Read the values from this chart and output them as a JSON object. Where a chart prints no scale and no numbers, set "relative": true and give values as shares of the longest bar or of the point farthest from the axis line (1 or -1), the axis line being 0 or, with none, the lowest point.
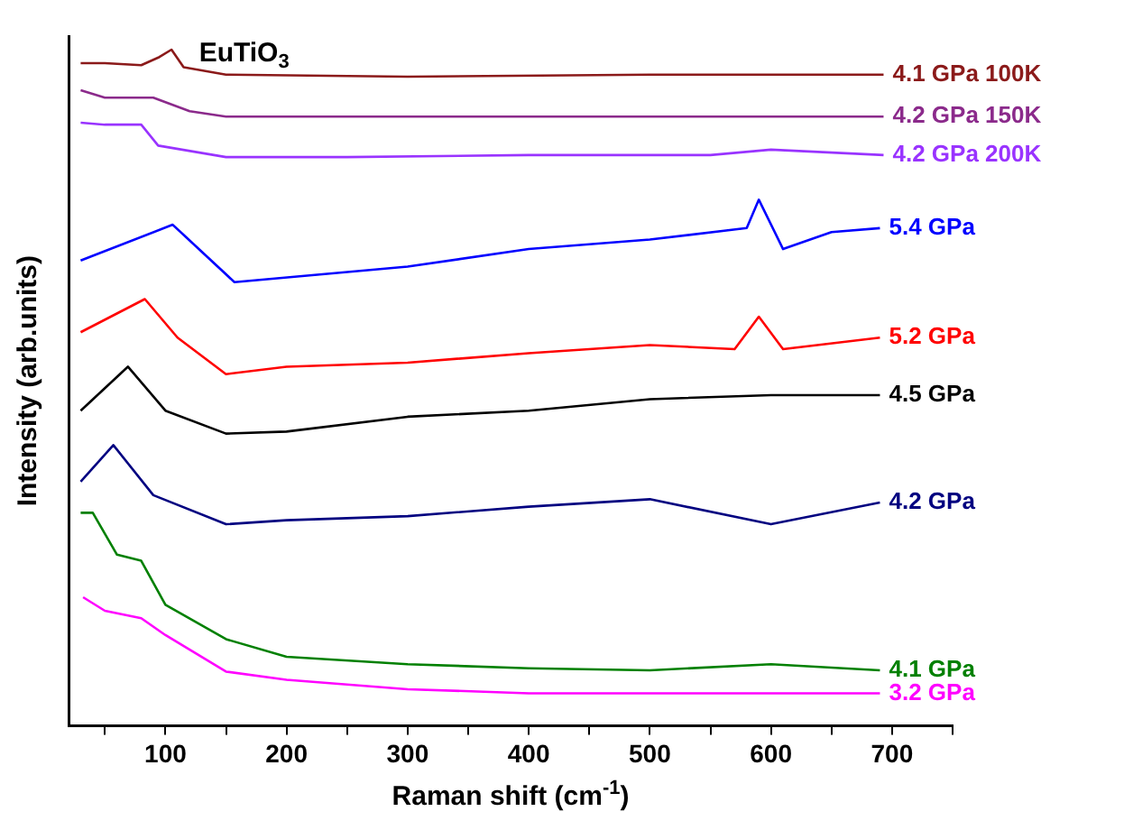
{
  "chart_data": {
    "type": "line",
    "title": "EuTiO$_{3}$",
    "xlabel": "Raman shift (cm$^{-1}$)",
    "ylabel": "Intensity (arb.units)",
    "relative": true,
    "legend": false,
    "grid": false,
    "marker": "none",
    "xlim": [
      20,
      750
    ],
    "xticks": [
      {
        "value": 50,
        "label": null
      },
      100,
      {
        "value": 150,
        "label": null
      },
      200,
      {
        "value": 250,
        "label": null
      },
      300,
      {
        "value": 350,
        "label": null
      },
      400,
      {
        "value": 450,
        "label": null
      },
      500,
      {
        "value": 550,
        "label": null
      },
      600,
      {
        "value": 650,
        "label": null
      },
      700,
      {
        "value": 750,
        "label": null
      }
    ],
    "series": [
      {
        "name": "4.1 GPa 100K",
        "color": "#8b1a1a",
        "x": [
          30,
          50,
          80,
          95,
          105,
          115,
          150,
          300,
          500,
          693
        ],
        "values": [
          0.98,
          0.98,
          0.977,
          0.989,
          1.0,
          0.974,
          0.963,
          0.96,
          0.963,
          0.963
        ]
      },
      {
        "name": "4.2 GPa 150K",
        "color": "#8b2a8b",
        "x": [
          30,
          50,
          90,
          120,
          150,
          300,
          500,
          693
        ],
        "values": [
          0.94,
          0.929,
          0.929,
          0.909,
          0.901,
          0.901,
          0.901,
          0.901
        ]
      },
      {
        "name": "4.2 GPa 200K",
        "color": "#9933ff",
        "x": [
          30,
          50,
          80,
          94,
          150,
          250,
          400,
          550,
          600,
          693
        ],
        "values": [
          0.892,
          0.889,
          0.889,
          0.858,
          0.841,
          0.841,
          0.844,
          0.844,
          0.852,
          0.844
        ]
      },
      {
        "name": "5.4 GPa",
        "color": "#0000ff",
        "x": [
          30,
          106,
          157,
          300,
          400,
          500,
          580,
          590,
          610,
          650,
          690
        ],
        "values": [
          0.688,
          0.741,
          0.656,
          0.679,
          0.705,
          0.719,
          0.736,
          0.778,
          0.705,
          0.73,
          0.736
        ]
      },
      {
        "name": "5.2 GPa",
        "color": "#ff0000",
        "x": [
          30,
          83,
          110,
          150,
          200,
          300,
          400,
          500,
          570,
          590,
          610,
          690
        ],
        "values": [
          0.582,
          0.631,
          0.574,
          0.52,
          0.531,
          0.537,
          0.551,
          0.563,
          0.557,
          0.605,
          0.557,
          0.574
        ]
      },
      {
        "name": "4.5 GPa",
        "color": "#000000",
        "x": [
          30,
          69,
          100,
          150,
          200,
          300,
          400,
          500,
          600,
          690
        ],
        "values": [
          0.466,
          0.531,
          0.466,
          0.432,
          0.435,
          0.457,
          0.466,
          0.483,
          0.489,
          0.489
        ]
      },
      {
        "name": "4.2 GPa",
        "color": "#000080",
        "x": [
          30,
          57,
          90,
          150,
          200,
          300,
          400,
          500,
          600,
          690
        ],
        "values": [
          0.361,
          0.415,
          0.341,
          0.298,
          0.304,
          0.31,
          0.324,
          0.335,
          0.298,
          0.33
        ]
      },
      {
        "name": "4.1 GPa",
        "color": "#008000",
        "x": [
          30,
          40,
          60,
          80,
          100,
          150,
          200,
          300,
          400,
          500,
          600,
          690
        ],
        "values": [
          0.315,
          0.315,
          0.253,
          0.244,
          0.179,
          0.128,
          0.102,
          0.091,
          0.085,
          0.082,
          0.091,
          0.082
        ]
      },
      {
        "name": "3.2 GPa",
        "color": "#ff00ff",
        "x": [
          32,
          50,
          80,
          100,
          150,
          200,
          300,
          400,
          690
        ],
        "values": [
          0.19,
          0.17,
          0.159,
          0.134,
          0.08,
          0.068,
          0.054,
          0.048,
          0.048
        ]
      }
    ]
  }
}
